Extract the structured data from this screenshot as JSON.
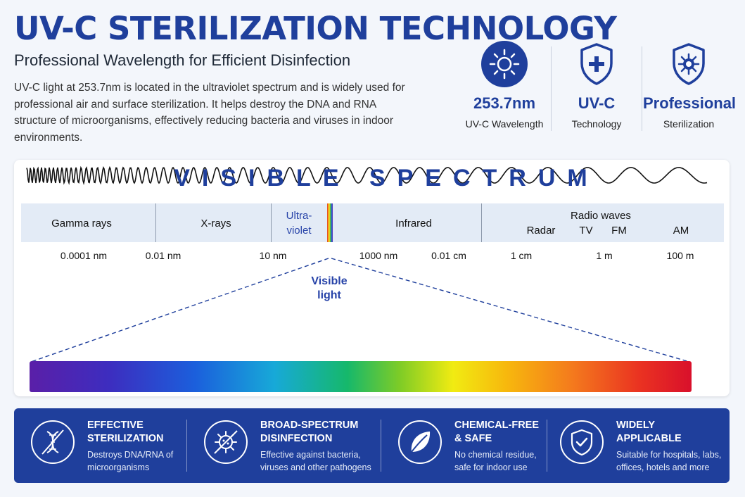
{
  "header": {
    "title": "UV-C STERILIZATION TECHNOLOGY",
    "subtitle": "Professional Wavelength for Efficient Disinfection",
    "description": "UV-C light at 253.7nm is located in the ultraviolet spectrum and is widely used for professional air and surface sterilization. It helps destroy the DNA and RNA structure of microorganisms, effectively reducing bacteria and viruses in indoor environments."
  },
  "features": [
    {
      "value": "253.7nm",
      "label": "UV-C Wavelength",
      "icon": "sun-icon"
    },
    {
      "value": "UV-C",
      "label": "Technology",
      "icon": "shield-plus-icon"
    },
    {
      "value": "Professional",
      "label": "Sterilization",
      "icon": "shield-virus-icon"
    }
  ],
  "spectrum": {
    "bands": {
      "gamma": "Gamma rays",
      "xrays": "X-rays",
      "uv_line1": "Ultra-",
      "uv_line2": "violet",
      "infrared": "Infrared",
      "radio": "Radio waves",
      "radar": "Radar",
      "tv": "TV",
      "fm": "FM",
      "am": "AM"
    },
    "ticks": [
      "0.0001 nm",
      "0.01 nm",
      "10 nm",
      "1000 nm",
      "0.01 cm",
      "1 cm",
      "1 m",
      "100 m"
    ],
    "visible_light_line1": "Visible",
    "visible_light_line2": "light",
    "visible_spectrum_title": "VISIBLE SPECTRUM"
  },
  "benefits": [
    {
      "title_line1": "EFFECTIVE",
      "title_line2": "STERILIZATION",
      "desc_line1": "Destroys DNA/RNA of",
      "desc_line2": "microorganisms",
      "icon": "dna-crossed-icon"
    },
    {
      "title_line1": "BROAD-SPECTRUM",
      "title_line2": "DISINFECTION",
      "desc_line1": "Effective against bacteria,",
      "desc_line2": "viruses and other pathogens",
      "icon": "virus-crossed-icon"
    },
    {
      "title_line1": "CHEMICAL-FREE",
      "title_line2": "& SAFE",
      "desc_line1": "No chemical residue,",
      "desc_line2": "safe for indoor use",
      "icon": "leaf-icon"
    },
    {
      "title_line1": "WIDELY",
      "title_line2": "APPLICABLE",
      "desc_line1": "Suitable for hospitals, labs,",
      "desc_line2": "offices, hotels and more",
      "icon": "shield-check-icon"
    }
  ],
  "colors": {
    "brand": "#1f3f9c",
    "band": "#e3ebf6",
    "background": "#f3f6fb"
  }
}
